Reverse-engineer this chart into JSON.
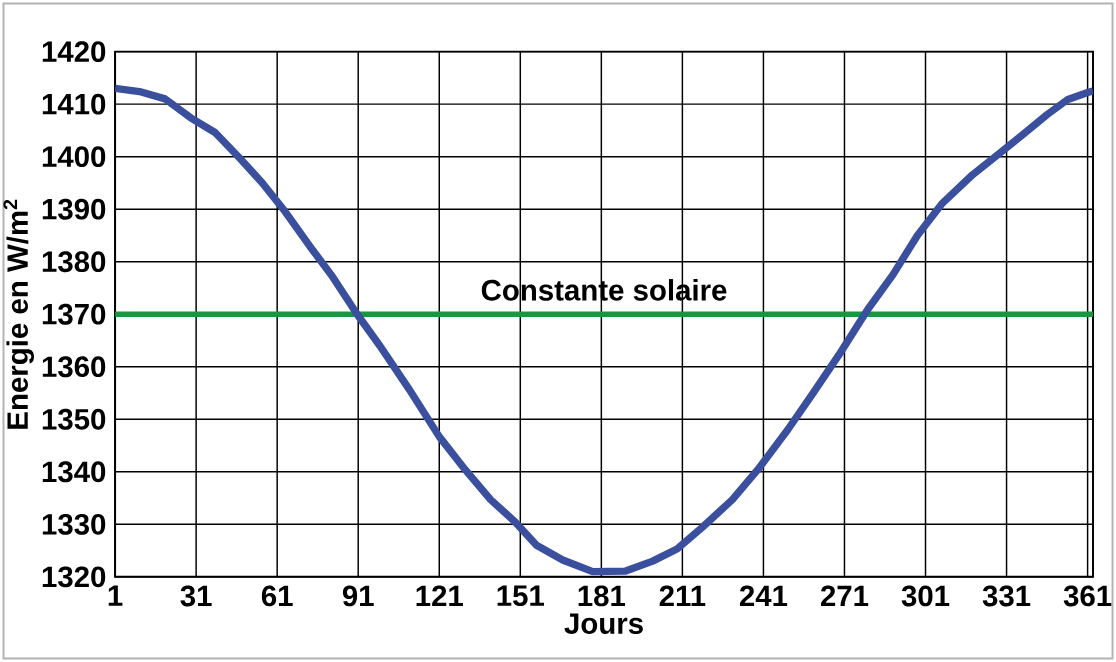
{
  "chart_data": {
    "type": "line",
    "xlabel": "Jours",
    "ylabel": "Energie en W/m$^{2}$",
    "x": [
      1,
      10,
      19.5,
      29,
      38,
      47,
      55.5,
      64,
      73,
      81,
      90.6,
      99,
      110,
      121,
      130.6,
      140,
      149,
      157,
      166.7,
      177.8,
      190,
      200,
      209,
      218.5,
      229.5,
      238.9,
      250,
      259,
      269,
      279.6,
      288.9,
      298,
      307,
      318.5,
      327.8,
      337,
      346,
      353.7,
      361,
      363
    ],
    "values": [
      1413,
      1412.4,
      1411,
      1407.4,
      1404.6,
      1399.8,
      1395,
      1389.5,
      1383,
      1377.5,
      1370,
      1364,
      1355.6,
      1346.7,
      1340.4,
      1334.7,
      1330.5,
      1326,
      1323.2,
      1321,
      1321.1,
      1323,
      1325.3,
      1329.5,
      1334.7,
      1340.4,
      1348,
      1354.7,
      1362.3,
      1370.9,
      1377.5,
      1385,
      1391,
      1396.6,
      1400.4,
      1404.2,
      1408,
      1410.9,
      1412.2,
      1412.5
    ],
    "color": "#3a4f9e",
    "marker": "none",
    "line_style": "solid",
    "grid": true,
    "xlim": [
      1,
      363
    ],
    "ylim": [
      1320,
      1420
    ],
    "xticks": [
      1,
      31,
      61,
      91,
      121,
      151,
      181,
      211,
      241,
      271,
      301,
      331,
      361
    ],
    "yticks": [
      1320,
      1330,
      1340,
      1350,
      1360,
      1370,
      1380,
      1390,
      1400,
      1410,
      1420
    ],
    "ref_lines": [
      {
        "axis": "y",
        "value": 1370,
        "label": "Constante solaire",
        "color": "#1a9641"
      }
    ]
  }
}
